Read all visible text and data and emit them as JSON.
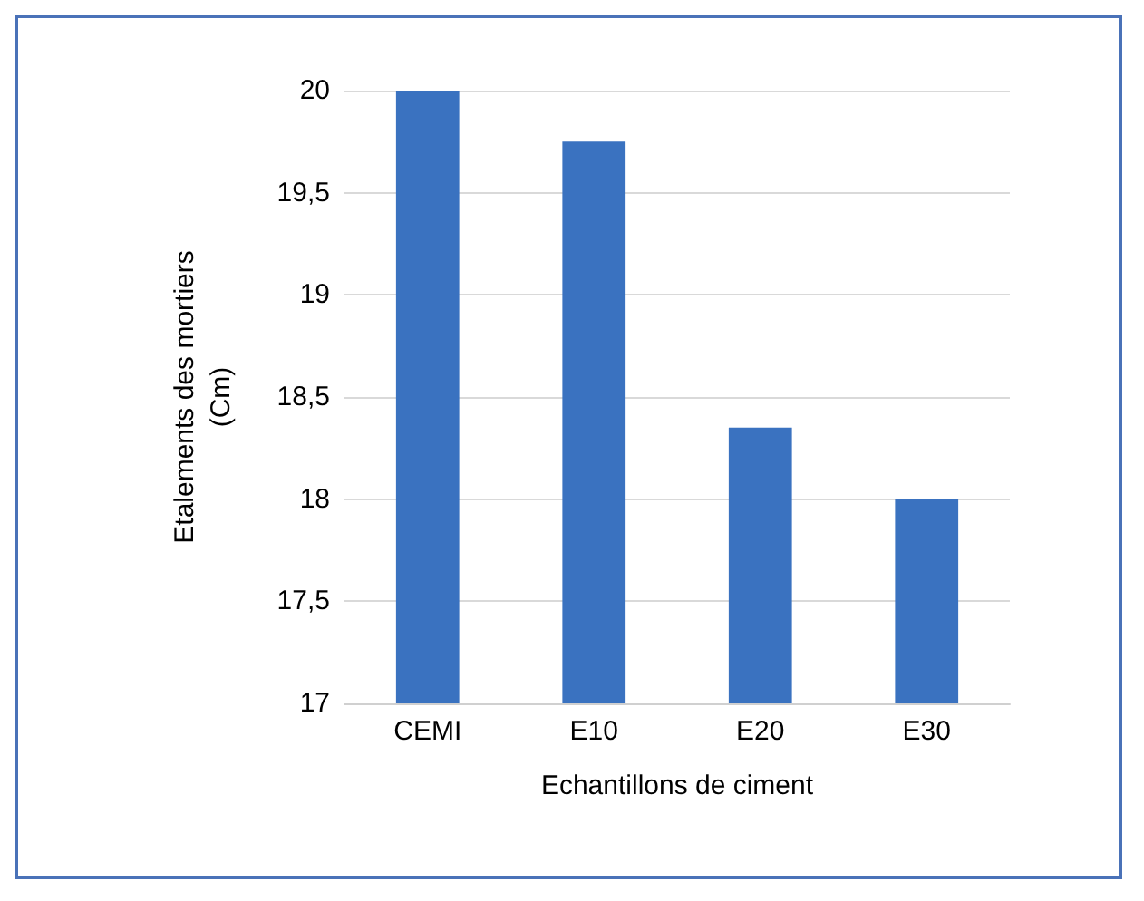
{
  "chart_data": {
    "type": "bar",
    "xlabel": "Echantillons de ciment",
    "ylabel": "Etalements des mortiers\n(Cm)",
    "categories": [
      "CEMI",
      "E10",
      "E20",
      "E30"
    ],
    "values": [
      20,
      19.75,
      18.35,
      18
    ],
    "color": "#3a72c0",
    "ylim": [
      17,
      20
    ],
    "yticks": [
      17,
      {
        "value": 17.5,
        "label": "17,5"
      },
      18,
      {
        "value": 18.5,
        "label": "18,5"
      },
      19,
      {
        "value": 19.5,
        "label": "19,5"
      },
      20
    ],
    "grid": "y"
  }
}
